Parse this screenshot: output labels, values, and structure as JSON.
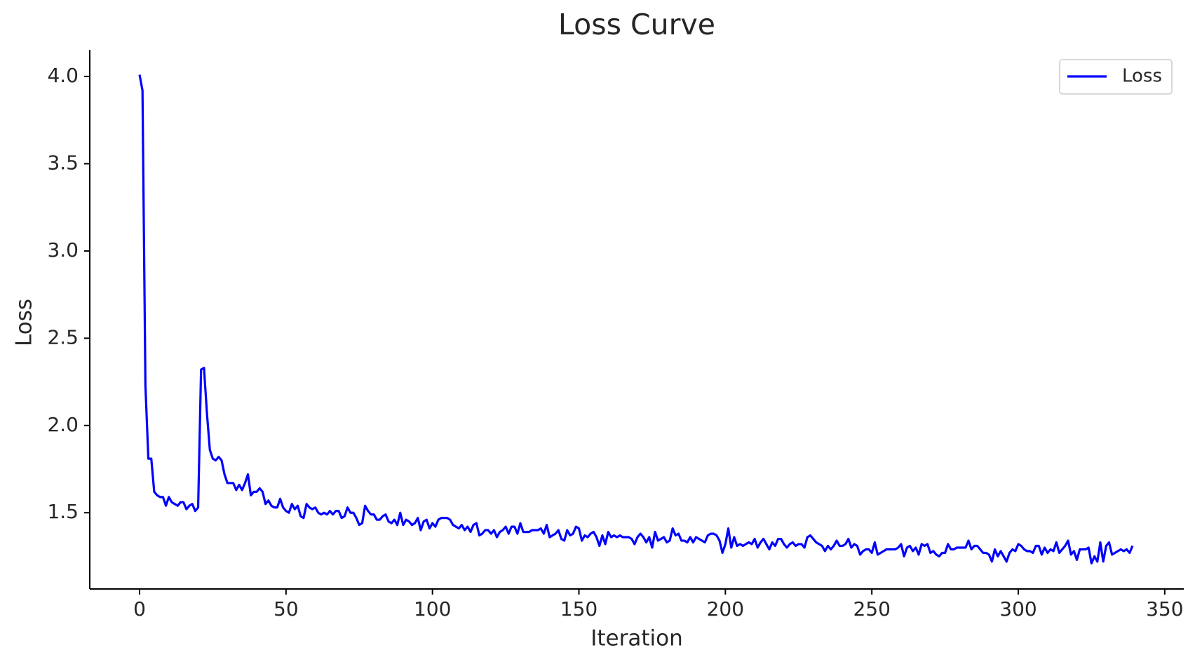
{
  "chart_data": {
    "type": "line",
    "title": "Loss Curve",
    "xlabel": "Iteration",
    "ylabel": "Loss",
    "xlim": [
      -17,
      356.5
    ],
    "ylim": [
      1.063,
      4.153
    ],
    "xticks": [
      0,
      50,
      100,
      150,
      200,
      250,
      300,
      350
    ],
    "yticks": [
      {
        "value": 1.5,
        "label": "1.5"
      },
      {
        "value": 2.0,
        "label": "2.0"
      },
      {
        "value": 2.5,
        "label": "2.5"
      },
      {
        "value": 3.0,
        "label": "3.0"
      },
      {
        "value": 3.5,
        "label": "3.5"
      },
      {
        "value": 4.0,
        "label": "4.0"
      }
    ],
    "legend": "upper right",
    "grid": false,
    "x": [
      0,
      1,
      2,
      3,
      4,
      5,
      6,
      7,
      8,
      9,
      10,
      11,
      12,
      13,
      14,
      15,
      16,
      17,
      18,
      19,
      20,
      21,
      22,
      23,
      24,
      25,
      26,
      27,
      28,
      29,
      30,
      31,
      32,
      33,
      34,
      35,
      36,
      37,
      38,
      39,
      40,
      41,
      42,
      43,
      44,
      45,
      46,
      47,
      48,
      49,
      50,
      51,
      52,
      53,
      54,
      55,
      56,
      57,
      58,
      59,
      60,
      61,
      62,
      63,
      64,
      65,
      66,
      67,
      68,
      69,
      70,
      71,
      72,
      73,
      74,
      75,
      76,
      77,
      78,
      79,
      80,
      81,
      82,
      83,
      84,
      85,
      86,
      87,
      88,
      89,
      90,
      91,
      92,
      93,
      94,
      95,
      96,
      97,
      98,
      99,
      100,
      101,
      102,
      103,
      104,
      105,
      106,
      107,
      108,
      109,
      110,
      111,
      112,
      113,
      114,
      115,
      116,
      117,
      118,
      119,
      120,
      121,
      122,
      123,
      124,
      125,
      126,
      127,
      128,
      129,
      130,
      131,
      132,
      133,
      134,
      135,
      136,
      137,
      138,
      139,
      140,
      141,
      142,
      143,
      144,
      145,
      146,
      147,
      148,
      149,
      150,
      151,
      152,
      153,
      154,
      155,
      156,
      157,
      158,
      159,
      160,
      161,
      162,
      163,
      164,
      165,
      166,
      167,
      168,
      169,
      170,
      171,
      172,
      173,
      174,
      175,
      176,
      177,
      178,
      179,
      180,
      181,
      182,
      183,
      184,
      185,
      186,
      187,
      188,
      189,
      190,
      191,
      192,
      193,
      194,
      195,
      196,
      197,
      198,
      199,
      200,
      201,
      202,
      203,
      204,
      205,
      206,
      207,
      208,
      209,
      210,
      211,
      212,
      213,
      214,
      215,
      216,
      217,
      218,
      219,
      220,
      221,
      222,
      223,
      224,
      225,
      226,
      227,
      228,
      229,
      230,
      231,
      232,
      233,
      234,
      235,
      236,
      237,
      238,
      239,
      240,
      241,
      242,
      243,
      244,
      245,
      246,
      247,
      248,
      249,
      250,
      251,
      252,
      253,
      254,
      255,
      256,
      257,
      258,
      259,
      260,
      261,
      262,
      263,
      264,
      265,
      266,
      267,
      268,
      269,
      270,
      271,
      272,
      273,
      274,
      275,
      276,
      277,
      278,
      279,
      280,
      281,
      282,
      283,
      284,
      285,
      286,
      287,
      288,
      289,
      290,
      291,
      292,
      293,
      294,
      295,
      296,
      297,
      298,
      299,
      300,
      301,
      302,
      303,
      304,
      305,
      306,
      307,
      308,
      309,
      310,
      311,
      312,
      313,
      314,
      315,
      316,
      317,
      318,
      319,
      320,
      321,
      322,
      323,
      324,
      325,
      326,
      327,
      328,
      329,
      330,
      331,
      332,
      333,
      334,
      335,
      336,
      337,
      338,
      339
    ],
    "series": [
      {
        "name": "Loss",
        "color": "#0000ff",
        "values": [
          4.01,
          3.92,
          2.23,
          1.81,
          1.81,
          1.62,
          1.6,
          1.59,
          1.59,
          1.54,
          1.59,
          1.56,
          1.55,
          1.54,
          1.56,
          1.56,
          1.52,
          1.54,
          1.55,
          1.51,
          1.53,
          2.32,
          2.33,
          2.07,
          1.86,
          1.81,
          1.8,
          1.82,
          1.8,
          1.72,
          1.67,
          1.67,
          1.67,
          1.63,
          1.66,
          1.63,
          1.67,
          1.72,
          1.6,
          1.62,
          1.62,
          1.64,
          1.62,
          1.55,
          1.57,
          1.54,
          1.53,
          1.53,
          1.58,
          1.53,
          1.51,
          1.5,
          1.55,
          1.52,
          1.54,
          1.48,
          1.47,
          1.55,
          1.53,
          1.52,
          1.53,
          1.5,
          1.49,
          1.5,
          1.49,
          1.51,
          1.49,
          1.51,
          1.51,
          1.47,
          1.48,
          1.53,
          1.5,
          1.5,
          1.47,
          1.43,
          1.44,
          1.54,
          1.51,
          1.49,
          1.49,
          1.46,
          1.46,
          1.48,
          1.49,
          1.45,
          1.44,
          1.46,
          1.43,
          1.5,
          1.43,
          1.46,
          1.45,
          1.43,
          1.44,
          1.47,
          1.4,
          1.45,
          1.46,
          1.41,
          1.44,
          1.42,
          1.46,
          1.47,
          1.47,
          1.47,
          1.46,
          1.43,
          1.42,
          1.41,
          1.43,
          1.4,
          1.42,
          1.39,
          1.43,
          1.44,
          1.37,
          1.38,
          1.4,
          1.4,
          1.38,
          1.4,
          1.36,
          1.39,
          1.4,
          1.42,
          1.38,
          1.42,
          1.42,
          1.38,
          1.44,
          1.39,
          1.39,
          1.39,
          1.4,
          1.4,
          1.4,
          1.41,
          1.38,
          1.43,
          1.36,
          1.37,
          1.38,
          1.4,
          1.35,
          1.34,
          1.4,
          1.37,
          1.38,
          1.42,
          1.41,
          1.34,
          1.37,
          1.36,
          1.38,
          1.39,
          1.36,
          1.31,
          1.37,
          1.32,
          1.39,
          1.36,
          1.37,
          1.36,
          1.37,
          1.36,
          1.36,
          1.36,
          1.35,
          1.32,
          1.36,
          1.38,
          1.36,
          1.33,
          1.36,
          1.3,
          1.39,
          1.34,
          1.35,
          1.36,
          1.33,
          1.34,
          1.41,
          1.37,
          1.38,
          1.34,
          1.34,
          1.33,
          1.36,
          1.33,
          1.36,
          1.35,
          1.34,
          1.33,
          1.37,
          1.38,
          1.38,
          1.37,
          1.34,
          1.27,
          1.32,
          1.41,
          1.3,
          1.36,
          1.31,
          1.32,
          1.31,
          1.32,
          1.33,
          1.32,
          1.35,
          1.3,
          1.33,
          1.35,
          1.32,
          1.29,
          1.33,
          1.31,
          1.35,
          1.35,
          1.32,
          1.3,
          1.32,
          1.33,
          1.31,
          1.32,
          1.32,
          1.3,
          1.36,
          1.37,
          1.35,
          1.33,
          1.32,
          1.31,
          1.28,
          1.31,
          1.29,
          1.31,
          1.34,
          1.31,
          1.31,
          1.32,
          1.35,
          1.3,
          1.32,
          1.31,
          1.26,
          1.28,
          1.29,
          1.29,
          1.27,
          1.33,
          1.26,
          1.27,
          1.28,
          1.29,
          1.29,
          1.29,
          1.29,
          1.3,
          1.32,
          1.25,
          1.3,
          1.31,
          1.28,
          1.3,
          1.26,
          1.32,
          1.31,
          1.32,
          1.27,
          1.28,
          1.26,
          1.25,
          1.27,
          1.27,
          1.32,
          1.29,
          1.29,
          1.3,
          1.3,
          1.3,
          1.3,
          1.34,
          1.29,
          1.31,
          1.31,
          1.29,
          1.27,
          1.27,
          1.26,
          1.22,
          1.29,
          1.25,
          1.28,
          1.25,
          1.22,
          1.27,
          1.29,
          1.28,
          1.32,
          1.31,
          1.29,
          1.28,
          1.28,
          1.27,
          1.31,
          1.31,
          1.26,
          1.3,
          1.27,
          1.29,
          1.28,
          1.33,
          1.27,
          1.29,
          1.31,
          1.34,
          1.26,
          1.28,
          1.23,
          1.29,
          1.29,
          1.29,
          1.3,
          1.21,
          1.25,
          1.22,
          1.33,
          1.22,
          1.31,
          1.33,
          1.26,
          1.27,
          1.28,
          1.29,
          1.28,
          1.29,
          1.27,
          1.31
        ]
      }
    ]
  }
}
